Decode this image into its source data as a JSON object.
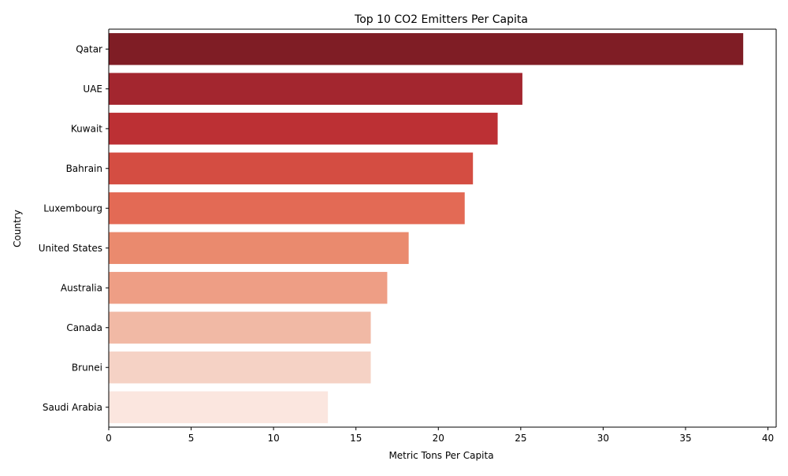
{
  "chart_data": {
    "type": "bar",
    "orientation": "horizontal",
    "title": "Top 10 CO2 Emitters Per Capita",
    "xlabel": "Metric Tons Per Capita",
    "ylabel": "Country",
    "categories": [
      "Qatar",
      "UAE",
      "Kuwait",
      "Bahrain",
      "Luxembourg",
      "United States",
      "Australia",
      "Canada",
      "Brunei",
      "Saudi Arabia"
    ],
    "values": [
      38.5,
      25.1,
      23.6,
      22.1,
      21.6,
      18.2,
      16.9,
      15.9,
      15.9,
      13.3
    ],
    "bar_colors": [
      "#7f1d25",
      "#a3262f",
      "#bc3034",
      "#d44d42",
      "#e36a55",
      "#ea8a6e",
      "#ee9e85",
      "#f1b9a5",
      "#f5d2c5",
      "#fbe6df"
    ],
    "xlim": [
      0,
      40.5
    ],
    "xticks": [
      0,
      5,
      10,
      15,
      20,
      25,
      30,
      35,
      40
    ],
    "grid": false,
    "legend": "none"
  }
}
